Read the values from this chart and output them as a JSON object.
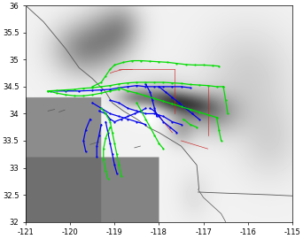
{
  "xlim": [
    -121,
    -115
  ],
  "ylim": [
    32,
    36
  ],
  "xticks": [
    -121,
    -120,
    -119,
    -118,
    -117,
    -116,
    -115
  ],
  "yticks": [
    32,
    32.5,
    33,
    33.5,
    34,
    34.5,
    35,
    35.5,
    36
  ],
  "tick_fontsize": 6,
  "weekday_color": "#0000ee",
  "weekend_color": "#00dd00",
  "line_width": 0.9,
  "marker_size": 1.2,
  "weekday_tracks": [
    [
      [
        -120.45,
        34.42
      ],
      [
        -120.1,
        34.42
      ],
      [
        -119.8,
        34.42
      ],
      [
        -119.5,
        34.43
      ],
      [
        -119.3,
        34.44
      ],
      [
        -119.1,
        34.45
      ],
      [
        -118.9,
        34.48
      ],
      [
        -118.7,
        34.5
      ],
      [
        -118.5,
        34.52
      ],
      [
        -118.3,
        34.5
      ],
      [
        -118.1,
        34.5
      ],
      [
        -117.9,
        34.5
      ],
      [
        -117.7,
        34.5
      ],
      [
        -117.5,
        34.5
      ],
      [
        -117.3,
        34.48
      ]
    ],
    [
      [
        -119.1,
        34.25
      ],
      [
        -118.9,
        34.2
      ],
      [
        -118.7,
        34.1
      ],
      [
        -118.5,
        34.05
      ],
      [
        -118.3,
        34.0
      ],
      [
        -118.1,
        34.0
      ],
      [
        -117.9,
        33.95
      ],
      [
        -117.7,
        33.85
      ],
      [
        -117.5,
        33.8
      ]
    ],
    [
      [
        -119.5,
        34.2
      ],
      [
        -119.3,
        34.1
      ],
      [
        -119.1,
        34.0
      ],
      [
        -118.9,
        33.95
      ],
      [
        -118.7,
        33.9
      ],
      [
        -118.5,
        33.85
      ],
      [
        -118.3,
        33.8
      ]
    ],
    [
      [
        -119.2,
        33.85
      ],
      [
        -119.15,
        33.65
      ],
      [
        -119.1,
        33.45
      ],
      [
        -119.05,
        33.25
      ],
      [
        -119.0,
        33.05
      ],
      [
        -118.95,
        32.9
      ]
    ],
    [
      [
        -119.3,
        33.8
      ],
      [
        -119.35,
        33.6
      ],
      [
        -119.4,
        33.4
      ],
      [
        -119.4,
        33.2
      ]
    ],
    [
      [
        -119.55,
        33.9
      ],
      [
        -119.65,
        33.7
      ],
      [
        -119.7,
        33.5
      ],
      [
        -119.65,
        33.3
      ]
    ],
    [
      [
        -119.35,
        34.05
      ],
      [
        -119.2,
        34.0
      ],
      [
        -119.1,
        33.9
      ],
      [
        -119.0,
        33.85
      ],
      [
        -118.85,
        33.9
      ],
      [
        -118.7,
        33.95
      ],
      [
        -118.55,
        34.0
      ],
      [
        -118.4,
        34.05
      ],
      [
        -118.3,
        34.1
      ]
    ],
    [
      [
        -118.2,
        34.1
      ],
      [
        -118.1,
        34.05
      ],
      [
        -118.0,
        33.95
      ],
      [
        -117.9,
        33.85
      ],
      [
        -117.75,
        33.75
      ],
      [
        -117.6,
        33.65
      ]
    ],
    [
      [
        -118.3,
        34.55
      ],
      [
        -118.2,
        34.4
      ],
      [
        -118.15,
        34.25
      ],
      [
        -118.1,
        34.1
      ],
      [
        -118.05,
        33.95
      ]
    ],
    [
      [
        -118.0,
        34.5
      ],
      [
        -117.85,
        34.4
      ],
      [
        -117.7,
        34.3
      ],
      [
        -117.55,
        34.2
      ],
      [
        -117.4,
        34.1
      ],
      [
        -117.25,
        34.0
      ],
      [
        -117.1,
        33.9
      ]
    ]
  ],
  "weekend_tracks": [
    [
      [
        -120.5,
        34.42
      ],
      [
        -120.3,
        34.43
      ],
      [
        -120.1,
        34.44
      ],
      [
        -119.9,
        34.45
      ],
      [
        -119.7,
        34.47
      ],
      [
        -119.5,
        34.48
      ],
      [
        -119.3,
        34.5
      ],
      [
        -119.1,
        34.52
      ],
      [
        -118.9,
        34.55
      ],
      [
        -118.7,
        34.57
      ],
      [
        -118.5,
        34.58
      ],
      [
        -118.3,
        34.58
      ],
      [
        -118.1,
        34.58
      ],
      [
        -117.9,
        34.58
      ],
      [
        -117.7,
        34.57
      ],
      [
        -117.5,
        34.56
      ],
      [
        -117.3,
        34.54
      ],
      [
        -117.1,
        34.53
      ],
      [
        -116.9,
        34.52
      ],
      [
        -116.7,
        34.5
      ],
      [
        -116.55,
        34.5
      ]
    ],
    [
      [
        -120.5,
        34.42
      ],
      [
        -120.3,
        34.38
      ],
      [
        -120.1,
        34.35
      ],
      [
        -119.9,
        34.33
      ],
      [
        -119.7,
        34.33
      ],
      [
        -119.5,
        34.35
      ],
      [
        -119.3,
        34.38
      ],
      [
        -119.1,
        34.42
      ],
      [
        -118.9,
        34.45
      ]
    ],
    [
      [
        -119.5,
        34.5
      ],
      [
        -119.3,
        34.58
      ],
      [
        -119.2,
        34.7
      ],
      [
        -119.1,
        34.82
      ],
      [
        -119.0,
        34.9
      ],
      [
        -118.8,
        34.95
      ],
      [
        -118.6,
        34.98
      ],
      [
        -118.4,
        34.98
      ],
      [
        -118.2,
        34.97
      ],
      [
        -118.0,
        34.96
      ],
      [
        -117.8,
        34.95
      ],
      [
        -117.6,
        34.93
      ],
      [
        -117.4,
        34.91
      ],
      [
        -117.2,
        34.9
      ],
      [
        -117.0,
        34.9
      ],
      [
        -116.8,
        34.89
      ],
      [
        -116.65,
        34.88
      ]
    ],
    [
      [
        -118.9,
        34.48
      ],
      [
        -118.7,
        34.42
      ],
      [
        -118.5,
        34.38
      ],
      [
        -118.3,
        34.33
      ],
      [
        -118.1,
        34.28
      ],
      [
        -117.9,
        34.23
      ],
      [
        -117.7,
        34.18
      ],
      [
        -117.5,
        34.13
      ],
      [
        -117.3,
        34.08
      ],
      [
        -117.1,
        34.03
      ],
      [
        -116.9,
        33.98
      ],
      [
        -116.7,
        33.93
      ]
    ],
    [
      [
        -119.3,
        34.1
      ],
      [
        -119.2,
        34.0
      ],
      [
        -119.1,
        33.85
      ],
      [
        -119.05,
        33.65
      ],
      [
        -119.0,
        33.45
      ],
      [
        -118.95,
        33.25
      ],
      [
        -118.9,
        33.05
      ],
      [
        -118.85,
        32.85
      ]
    ],
    [
      [
        -118.5,
        34.2
      ],
      [
        -118.4,
        34.05
      ],
      [
        -118.3,
        33.9
      ],
      [
        -118.2,
        33.75
      ],
      [
        -118.1,
        33.6
      ],
      [
        -118.0,
        33.45
      ],
      [
        -117.9,
        33.35
      ]
    ],
    [
      [
        -119.1,
        33.75
      ],
      [
        -119.2,
        33.55
      ],
      [
        -119.25,
        33.35
      ],
      [
        -119.25,
        33.15
      ],
      [
        -119.2,
        32.95
      ],
      [
        -119.15,
        32.8
      ]
    ],
    [
      [
        -116.55,
        34.5
      ],
      [
        -116.5,
        34.25
      ],
      [
        -116.45,
        34.0
      ]
    ],
    [
      [
        -116.7,
        33.93
      ],
      [
        -116.65,
        33.7
      ],
      [
        -116.6,
        33.5
      ]
    ],
    [
      [
        -117.45,
        33.9
      ],
      [
        -117.3,
        33.8
      ],
      [
        -117.15,
        33.75
      ]
    ]
  ],
  "figsize": [
    3.42,
    2.7
  ],
  "dpi": 100
}
